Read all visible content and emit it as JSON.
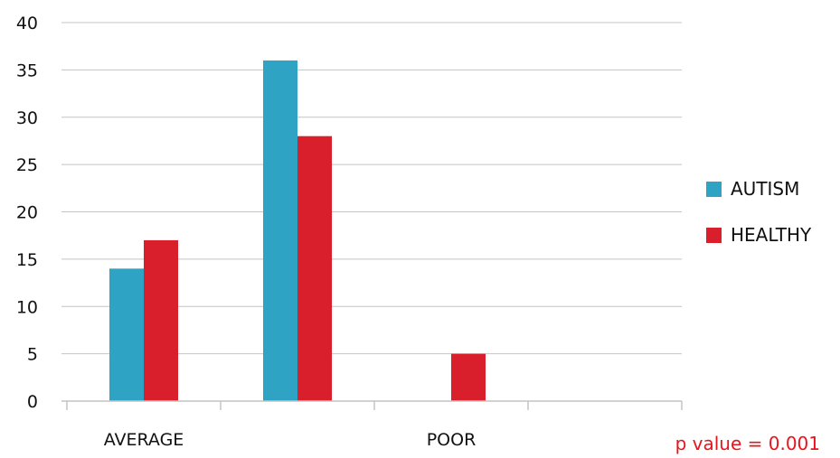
{
  "chart_data": {
    "type": "bar",
    "categories": [
      "AVERAGE",
      "",
      "POOR",
      ""
    ],
    "series": [
      {
        "name": "AUTISM",
        "color": "#2ea3c3",
        "values": [
          14,
          36,
          0,
          0
        ]
      },
      {
        "name": "HEALTHY",
        "color": "#d91f2b",
        "values": [
          17,
          28,
          5,
          0
        ]
      }
    ],
    "y_ticks": [
      "0",
      "5",
      "10",
      "15",
      "20",
      "25",
      "30",
      "35",
      "40"
    ],
    "ylim": [
      0,
      40
    ],
    "grid": true,
    "legend": "right",
    "annotation": {
      "text": "p value = 0.001",
      "color": "#e8141c"
    }
  }
}
